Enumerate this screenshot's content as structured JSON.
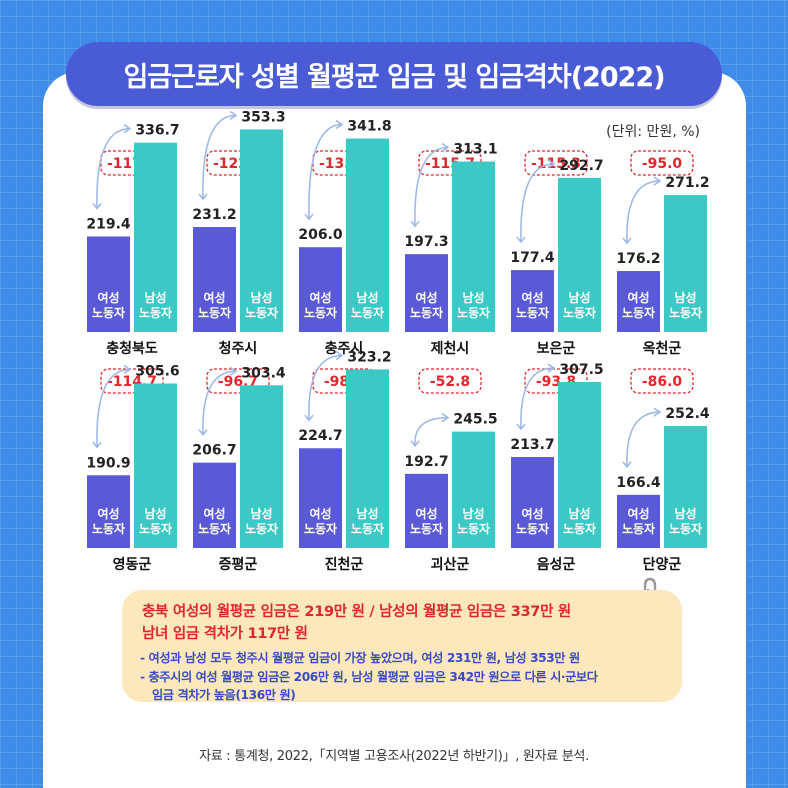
{
  "title": "임금근로자 성별 월평균 임금 및 임금격차(2022)",
  "unit": "(단위: 만원, %)",
  "colors": {
    "background": "#3f8be8",
    "title_bg": "#4a5bd6",
    "female_bar": "#5a5ad6",
    "male_bar": "#3cc8c4",
    "gap_text": "#e3252c",
    "note_bg": "#fde8bd",
    "note_body": "#3a4bc2"
  },
  "chart_data": {
    "type": "bar",
    "series_labels": {
      "female": "여성\n노동자",
      "male": "남성\n노동자"
    },
    "regions": [
      {
        "name": "충청북도",
        "female": 219.4,
        "male": 336.7,
        "gap": "-117.3"
      },
      {
        "name": "청주시",
        "female": 231.2,
        "male": 353.3,
        "gap": "-122.0"
      },
      {
        "name": "충주시",
        "female": 206.0,
        "male": 341.8,
        "gap": "-135.8"
      },
      {
        "name": "제천시",
        "female": 197.3,
        "male": 313.1,
        "gap": "-115.7"
      },
      {
        "name": "보은군",
        "female": 177.4,
        "male": 292.7,
        "gap": "-115.3"
      },
      {
        "name": "옥천군",
        "female": 176.2,
        "male": 271.2,
        "gap": "-95.0"
      },
      {
        "name": "영동군",
        "female": 190.9,
        "male": 305.6,
        "gap": "-114.7"
      },
      {
        "name": "증평군",
        "female": 206.7,
        "male": 303.4,
        "gap": "-96.7"
      },
      {
        "name": "진천군",
        "female": 224.7,
        "male": 323.2,
        "gap": "-98.5"
      },
      {
        "name": "괴산군",
        "female": 192.7,
        "male": 245.5,
        "gap": "-52.8"
      },
      {
        "name": "음성군",
        "female": 213.7,
        "male": 307.5,
        "gap": "-93.8"
      },
      {
        "name": "단양군",
        "female": 166.4,
        "male": 252.4,
        "gap": "-86.0"
      }
    ]
  },
  "note": {
    "headline1": "충북 여성의 월평균 임금은 219만 원 / 남성의 월평균 임금은 337만 원",
    "headline2": "남녀 임금 격차가 117만 원",
    "bullet1": "- 여성과 남성 모두 청주시 월평균 임금이 가장 높았으며, 여성 231만 원, 남성 353만 원",
    "bullet2": "- 충주시의 여성 월평균 임금은 206만 원, 남성 월평균 임금은 342만 원으로 다른 시·군보다",
    "bullet3": "임금 격차가 높음(136만 원)"
  },
  "source": "자료 : 통계청, 2022,「지역별 고용조사(2022년 하반기)」, 원자료 분석."
}
